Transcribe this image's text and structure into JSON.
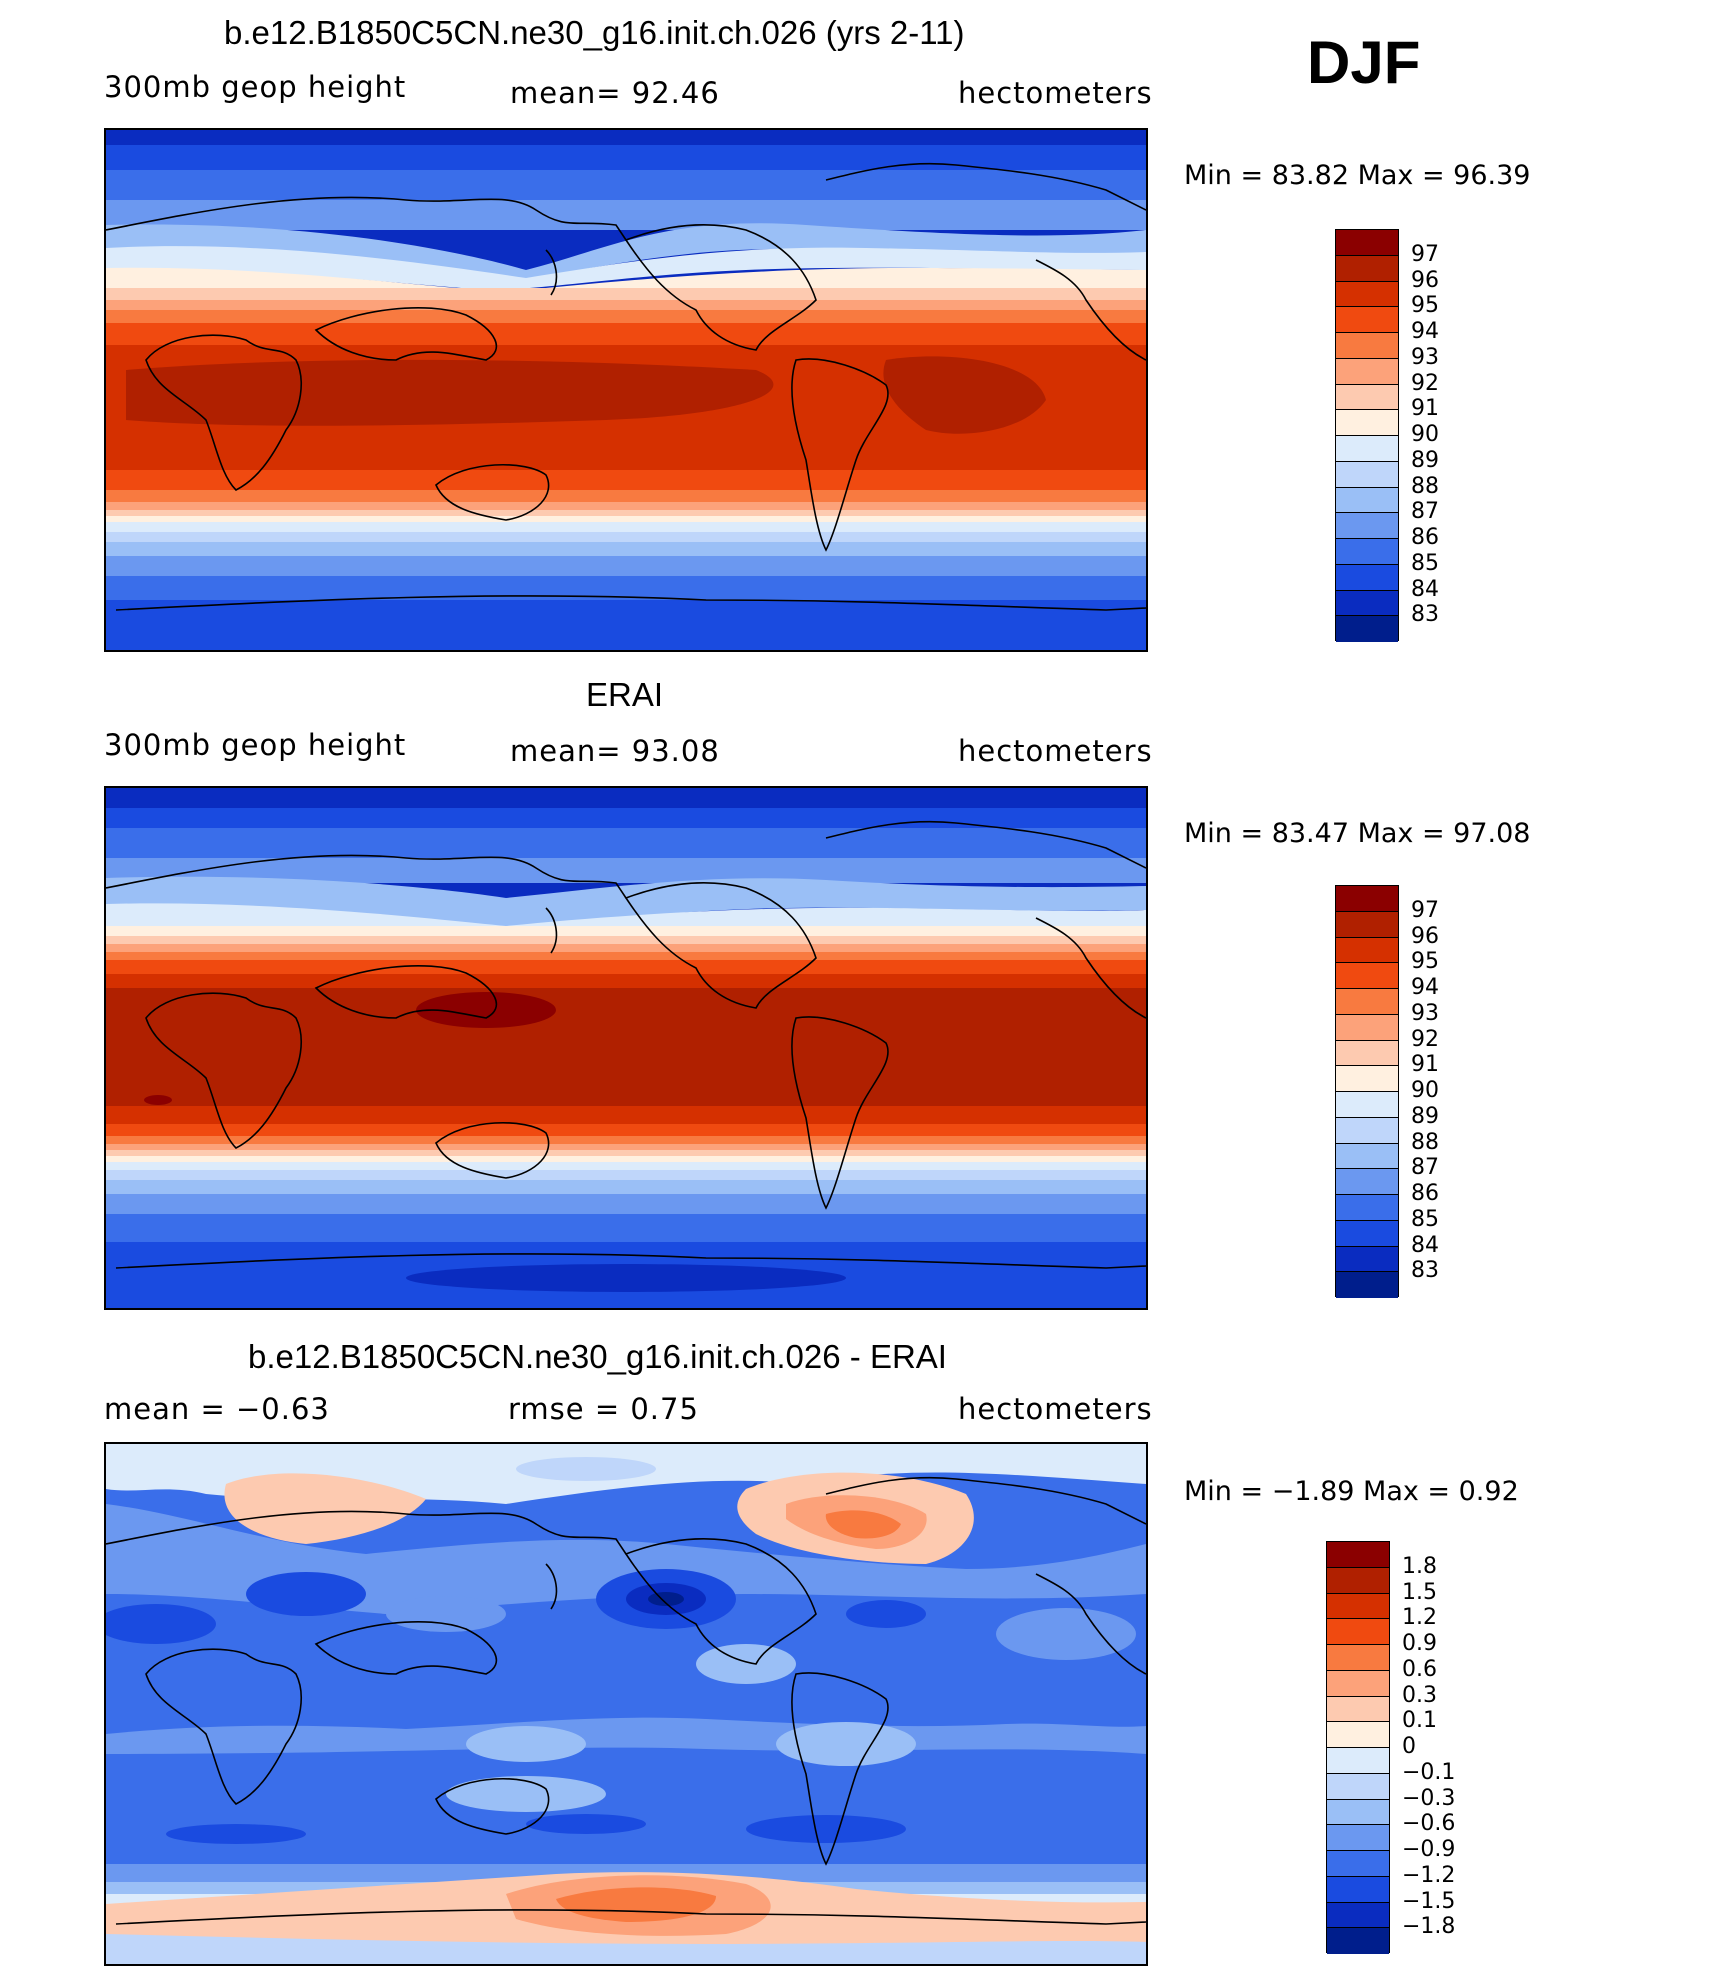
{
  "season": "DJF",
  "panels": [
    {
      "title": "b.e12.B1850C5CN.ne30_g16.init.ch.026 (yrs 2-11)",
      "left_label": "300mb geop height",
      "center_label": "mean=  92.46",
      "right_label": "hectometers",
      "minmax": "Min =   83.82  Max =   96.39",
      "colorbar": {
        "labels": [
          "97",
          "96",
          "95",
          "94",
          "93",
          "92",
          "91",
          "90",
          "89",
          "88",
          "87",
          "86",
          "85",
          "84",
          "83"
        ],
        "colors": [
          "#8B0000",
          "#B02000",
          "#D53000",
          "#F04A10",
          "#F87A40",
          "#FCA27A",
          "#FDCAB0",
          "#FFF0E0",
          "#DCEBFB",
          "#BFD6FA",
          "#9ABFF6",
          "#6B98F0",
          "#3A6EEA",
          "#1A4BE0",
          "#0A2CC0",
          "#001E8C"
        ]
      }
    },
    {
      "title": "ERAI",
      "left_label": "300mb geop height",
      "center_label": "mean=  93.08",
      "right_label": "hectometers",
      "minmax": "Min =   83.47  Max =   97.08",
      "colorbar": {
        "labels": [
          "97",
          "96",
          "95",
          "94",
          "93",
          "92",
          "91",
          "90",
          "89",
          "88",
          "87",
          "86",
          "85",
          "84",
          "83"
        ],
        "colors": [
          "#8B0000",
          "#B02000",
          "#D53000",
          "#F04A10",
          "#F87A40",
          "#FCA27A",
          "#FDCAB0",
          "#FFF0E0",
          "#DCEBFB",
          "#BFD6FA",
          "#9ABFF6",
          "#6B98F0",
          "#3A6EEA",
          "#1A4BE0",
          "#0A2CC0",
          "#001E8C"
        ]
      }
    },
    {
      "title": "b.e12.B1850C5CN.ne30_g16.init.ch.026 - ERAI",
      "left_label": "mean =   −0.63",
      "center_label": "rmse =    0.75",
      "right_label": "hectometers",
      "minmax": "Min =  −1.89  Max =    0.92",
      "colorbar": {
        "labels": [
          "1.8",
          "1.5",
          "1.2",
          "0.9",
          "0.6",
          "0.3",
          "0.1",
          "0",
          "−0.1",
          "−0.3",
          "−0.6",
          "−0.9",
          "−1.2",
          "−1.5",
          "−1.8"
        ],
        "colors": [
          "#8B0000",
          "#B02000",
          "#D53000",
          "#F04A10",
          "#F87A40",
          "#FCA27A",
          "#FDCAB0",
          "#FFF0E0",
          "#DCEBFB",
          "#BFD6FA",
          "#9ABFF6",
          "#6B98F0",
          "#3A6EEA",
          "#1A4BE0",
          "#0A2CC0",
          "#001E8C"
        ]
      }
    }
  ]
}
